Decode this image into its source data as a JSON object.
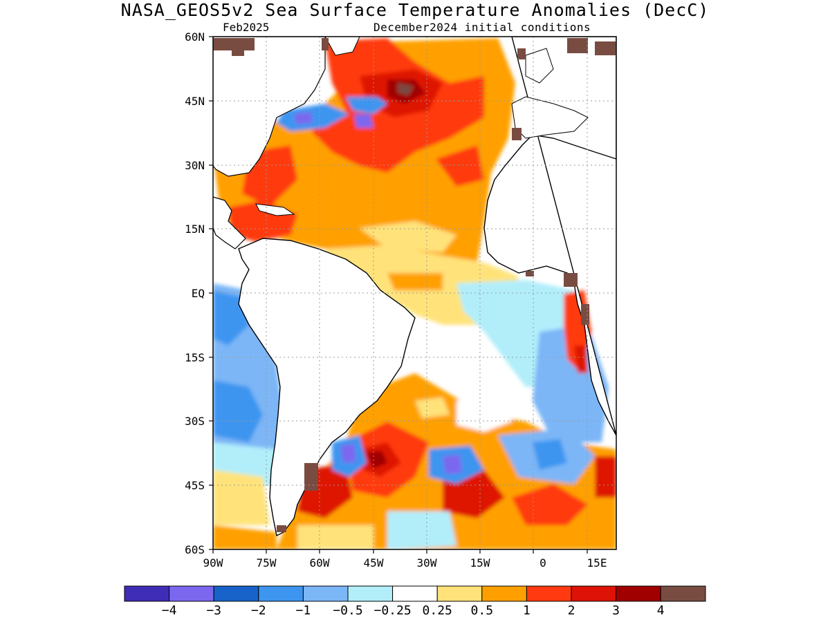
{
  "title": "NASA_GEOS5v2 Sea Surface Temperature Anomalies (DecC)",
  "valid_label": "Feb2025",
  "init_label": "December2024 initial conditions",
  "lat_labels": [
    "60N",
    "45N",
    "30N",
    "15N",
    "EQ",
    "15S",
    "30S",
    "45S",
    "60S"
  ],
  "lon_labels": [
    "90W",
    "75W",
    "60W",
    "45W",
    "30W",
    "15W",
    "0",
    "15E"
  ],
  "colorbar": {
    "colors": [
      "#3f2db8",
      "#7b68ee",
      "#1763c9",
      "#3d95f0",
      "#7bb6f7",
      "#b1eefa",
      "#ffffff",
      "#ffe37a",
      "#ffa000",
      "#ff3a10",
      "#de1206",
      "#a00000",
      "#794c42"
    ],
    "labels": [
      "−4",
      "−3",
      "−2",
      "−1",
      "−0.5",
      "−0.25",
      "0.25",
      "0.5",
      "1",
      "2",
      "3",
      "4"
    ]
  }
}
